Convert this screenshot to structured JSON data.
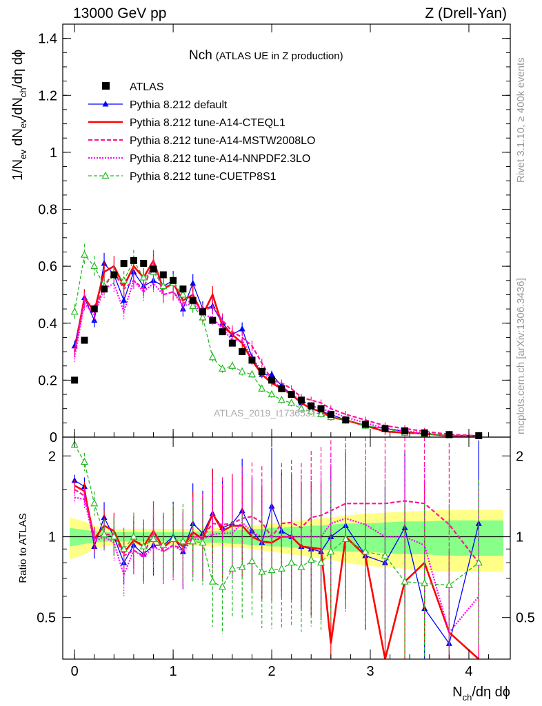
{
  "header": {
    "left": "13000 GeV pp",
    "right": "Z (Drell-Yan)"
  },
  "side_labels": {
    "rivet": "Rivet 3.1.10, ≥ 400k events",
    "source": "mcplots.cern.ch [arXiv:1306.3436]"
  },
  "colors": {
    "atlas": "#000000",
    "default": "#0000ff",
    "cteql1": "#ff0000",
    "mstw": "#ff1493",
    "nnpdf": "#ff00ff",
    "cuetp8s1": "#22bb22",
    "band_inner": "#88ff88",
    "band_outer": "#ffff88"
  },
  "chart_data": [
    {
      "type": "line",
      "title": "Nch",
      "subtitle": "(ATLAS UE in Z production)",
      "watermark": "ATLAS_2019_I1736531",
      "ylabel": {
        "main": "1/N",
        "sub1": "ev",
        "mid": " dN",
        "sub2": "ev",
        "end": "/dN",
        "sub3": "ch",
        "tail": "/dη dϕ"
      },
      "xlim": [
        -0.12,
        4.42
      ],
      "ylim": [
        0,
        1.45
      ],
      "yticks": [
        "0",
        "0.2",
        "0.4",
        "0.6",
        "0.8",
        "1",
        "1.2",
        "1.4"
      ],
      "ytick_values": [
        0,
        0.2,
        0.4,
        0.6,
        0.8,
        1.0,
        1.2,
        1.4
      ],
      "legend": [
        {
          "key": "atlas",
          "label": "ATLAS"
        },
        {
          "key": "default",
          "label": "Pythia 8.212 default"
        },
        {
          "key": "cteql1",
          "label": "Pythia 8.212 tune-A14-CTEQL1"
        },
        {
          "key": "mstw",
          "label": "Pythia 8.212 tune-A14-MSTW2008LO"
        },
        {
          "key": "nnpdf",
          "label": "Pythia 8.212 tune-A14-NNPDF2.3LO"
        },
        {
          "key": "cuetp8s1",
          "label": "Pythia 8.212 tune-CUETP8S1"
        }
      ],
      "x": [
        0.0,
        0.1,
        0.2,
        0.3,
        0.4,
        0.5,
        0.6,
        0.7,
        0.8,
        0.9,
        1.0,
        1.1,
        1.2,
        1.3,
        1.4,
        1.5,
        1.6,
        1.7,
        1.8,
        1.9,
        2.0,
        2.1,
        2.2,
        2.3,
        2.4,
        2.5,
        2.6,
        2.75,
        2.95,
        3.15,
        3.35,
        3.55,
        3.8,
        4.1
      ],
      "atlas": [
        0.2,
        0.34,
        0.45,
        0.52,
        0.57,
        0.61,
        0.62,
        0.61,
        0.59,
        0.57,
        0.55,
        0.52,
        0.48,
        0.44,
        0.41,
        0.37,
        0.33,
        0.3,
        0.27,
        0.23,
        0.2,
        0.17,
        0.15,
        0.13,
        0.11,
        0.1,
        0.08,
        0.06,
        0.045,
        0.03,
        0.022,
        0.015,
        0.009,
        0.005
      ],
      "series": [
        {
          "key": "default",
          "name": "Pythia 8.212 default",
          "marker": "triangle-filled",
          "values": [
            0.32,
            0.49,
            0.41,
            0.61,
            0.57,
            0.48,
            0.58,
            0.53,
            0.55,
            0.53,
            0.55,
            0.45,
            0.54,
            0.45,
            0.46,
            0.4,
            0.36,
            0.38,
            0.28,
            0.22,
            0.22,
            0.18,
            0.15,
            0.12,
            0.1,
            0.09,
            0.08,
            0.06,
            0.04,
            0.03,
            0.02,
            0.01,
            0.006,
            0.006
          ]
        },
        {
          "key": "cteql1",
          "name": "Pythia 8.212 tune-A14-CTEQL1",
          "marker": "none",
          "values": [
            0.3,
            0.49,
            0.44,
            0.58,
            0.6,
            0.53,
            0.6,
            0.56,
            0.62,
            0.52,
            0.54,
            0.48,
            0.5,
            0.43,
            0.5,
            0.39,
            0.36,
            0.33,
            0.27,
            0.22,
            0.19,
            0.17,
            0.15,
            0.12,
            0.1,
            0.09,
            0.07,
            0.06,
            0.04,
            0.02,
            0.015,
            0.012,
            0.004,
            0.002
          ]
        },
        {
          "key": "mstw",
          "name": "Pythia 8.212 tune-A14-MSTW2008LO",
          "marker": "none",
          "values": [
            0.3,
            0.48,
            0.44,
            0.53,
            0.58,
            0.52,
            0.55,
            0.52,
            0.62,
            0.5,
            0.51,
            0.47,
            0.48,
            0.44,
            0.46,
            0.41,
            0.37,
            0.35,
            0.32,
            0.26,
            0.2,
            0.19,
            0.17,
            0.14,
            0.13,
            0.12,
            0.1,
            0.08,
            0.06,
            0.04,
            0.03,
            0.02,
            0.01,
            0.004
          ]
        },
        {
          "key": "nnpdf",
          "name": "Pythia 8.212 tune-A14-NNPDF2.3LO",
          "marker": "none",
          "values": [
            0.28,
            0.47,
            0.43,
            0.52,
            0.54,
            0.44,
            0.55,
            0.51,
            0.54,
            0.5,
            0.51,
            0.46,
            0.47,
            0.43,
            0.42,
            0.38,
            0.34,
            0.34,
            0.28,
            0.23,
            0.2,
            0.17,
            0.15,
            0.13,
            0.11,
            0.1,
            0.09,
            0.07,
            0.05,
            0.03,
            0.022,
            0.014,
            0.004,
            0.003
          ]
        },
        {
          "key": "cuetp8s1",
          "name": "Pythia 8.212 tune-CUETP8S1",
          "marker": "triangle-open",
          "values": [
            0.44,
            0.64,
            0.6,
            0.53,
            0.57,
            0.55,
            0.62,
            0.56,
            0.58,
            0.53,
            0.54,
            0.5,
            0.46,
            0.42,
            0.28,
            0.24,
            0.25,
            0.23,
            0.22,
            0.17,
            0.15,
            0.13,
            0.12,
            0.1,
            0.09,
            0.08,
            0.07,
            0.06,
            0.04,
            0.03,
            0.015,
            0.01,
            0.006,
            0.004
          ]
        }
      ]
    },
    {
      "type": "line",
      "title": "",
      "ylabel": "Ratio to ATLAS",
      "xlabel": {
        "main": "N",
        "sub": "ch",
        "tail": "/dη dϕ"
      },
      "xlim": [
        -0.12,
        4.42
      ],
      "ylim": [
        0.35,
        2.35
      ],
      "xticks": [
        "0",
        "1",
        "2",
        "3",
        "4"
      ],
      "xtick_values": [
        0,
        1,
        2,
        3,
        4
      ],
      "yticks": [
        "0.5",
        "1",
        "2"
      ],
      "ytick_values": [
        0.5,
        1,
        2
      ],
      "x": [
        0.0,
        0.1,
        0.2,
        0.3,
        0.4,
        0.5,
        0.6,
        0.7,
        0.8,
        0.9,
        1.0,
        1.1,
        1.2,
        1.3,
        1.4,
        1.5,
        1.6,
        1.7,
        1.8,
        1.9,
        2.0,
        2.1,
        2.2,
        2.3,
        2.4,
        2.5,
        2.6,
        2.75,
        2.95,
        3.15,
        3.35,
        3.55,
        3.8,
        4.1
      ],
      "band_inner": [
        0.92,
        0.94,
        0.95,
        0.96,
        0.96,
        0.96,
        0.96,
        0.96,
        0.96,
        0.96,
        0.96,
        0.96,
        0.96,
        0.95,
        0.95,
        0.95,
        0.94,
        0.94,
        0.93,
        0.93,
        0.92,
        0.92,
        0.91,
        0.91,
        0.9,
        0.9,
        0.89,
        0.88,
        0.88,
        0.87,
        0.86,
        0.86,
        0.85,
        0.85
      ],
      "band_outer": [
        0.82,
        0.86,
        0.9,
        0.92,
        0.93,
        0.93,
        0.93,
        0.93,
        0.93,
        0.93,
        0.93,
        0.93,
        0.93,
        0.92,
        0.92,
        0.92,
        0.91,
        0.91,
        0.9,
        0.89,
        0.88,
        0.87,
        0.86,
        0.85,
        0.84,
        0.83,
        0.82,
        0.8,
        0.78,
        0.77,
        0.76,
        0.75,
        0.74,
        0.74
      ],
      "series": [
        {
          "key": "default",
          "values": [
            1.62,
            1.54,
            0.92,
            1.18,
            1.0,
            0.8,
            0.93,
            0.86,
            0.93,
            0.93,
            1.0,
            0.88,
            1.12,
            1.03,
            1.22,
            1.08,
            1.12,
            1.25,
            1.05,
            0.95,
            1.3,
            1.05,
            1.0,
            0.92,
            0.9,
            0.88,
            1.0,
            1.1,
            0.85,
            0.8,
            1.08,
            0.54,
            0.4,
            1.12
          ]
        },
        {
          "key": "cteql1",
          "values": [
            1.55,
            1.48,
            0.98,
            1.1,
            1.05,
            0.87,
            0.97,
            0.92,
            1.05,
            0.91,
            0.98,
            0.92,
            1.04,
            0.98,
            1.22,
            1.05,
            1.1,
            1.1,
            1.0,
            0.96,
            0.95,
            1.0,
            1.0,
            0.92,
            0.91,
            0.9,
            0.4,
            1.0,
            0.85,
            0.35,
            0.68,
            0.8,
            0.44,
            0.35
          ]
        },
        {
          "key": "mstw",
          "values": [
            1.5,
            1.42,
            0.98,
            1.02,
            1.02,
            0.85,
            0.89,
            0.85,
            1.05,
            0.88,
            0.93,
            0.9,
            1.0,
            1.0,
            1.12,
            1.11,
            1.12,
            1.17,
            1.19,
            1.13,
            1.0,
            1.12,
            1.13,
            1.08,
            1.18,
            1.2,
            1.25,
            1.33,
            1.33,
            1.33,
            1.36,
            1.33,
            1.11,
            0.8
          ]
        },
        {
          "key": "nnpdf",
          "values": [
            1.4,
            1.38,
            0.96,
            1.0,
            0.95,
            0.72,
            0.89,
            0.84,
            0.92,
            0.88,
            0.93,
            0.88,
            0.98,
            0.98,
            1.02,
            1.03,
            1.03,
            1.13,
            1.04,
            1.0,
            1.0,
            1.0,
            1.0,
            1.0,
            1.0,
            1.0,
            1.12,
            1.17,
            1.11,
            1.0,
            1.0,
            0.93,
            0.44,
            0.6
          ]
        },
        {
          "key": "cuetp8s1",
          "values": [
            2.2,
            1.9,
            1.33,
            1.02,
            1.0,
            0.9,
            1.0,
            0.92,
            0.98,
            0.93,
            0.98,
            0.96,
            0.96,
            0.95,
            0.68,
            0.65,
            0.76,
            0.77,
            0.81,
            0.74,
            0.75,
            0.76,
            0.8,
            0.77,
            0.82,
            0.8,
            0.88,
            0.98,
            0.88,
            0.85,
            0.68,
            0.67,
            0.66,
            0.8
          ]
        }
      ]
    }
  ]
}
